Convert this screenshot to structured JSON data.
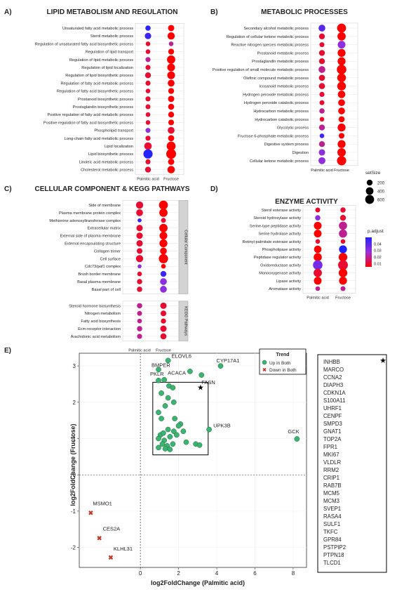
{
  "colors": {
    "scale_high": "#2222ff",
    "scale_mid": "#9b30d9",
    "scale_low": "#ff0000",
    "up_both": "#3cb371",
    "down_both": "#c0392b",
    "panel_bg": "#ffffff",
    "strip_bg": "#d3d3d3"
  },
  "shared": {
    "x_categories": [
      "Palmitic acid",
      "Fructose"
    ]
  },
  "size_legend": {
    "title": "setSize",
    "labels": [
      "200",
      "400",
      "600"
    ],
    "values": [
      200,
      400,
      600
    ]
  },
  "color_legend": {
    "title": "p.adjust",
    "labels": [
      "0.04",
      "0.03",
      "0.02",
      "0.01"
    ],
    "values": [
      0.04,
      0.03,
      0.02,
      0.01
    ]
  },
  "chart_data": [
    {
      "type": "scatter",
      "panel": "A)",
      "title": "LIPID METABOLISM AND REGULATION",
      "encoding": "dotplot",
      "categories": [
        "Palmitic acid",
        "Fructose"
      ],
      "terms": [
        "Unsaturated fatty acid metabolic process",
        "Sterol metabolic process",
        "Regulation of unsaturated fatty acid biosynthetic process",
        "Regulation of lipid transport",
        "Regulation of lipid metabolic process",
        "Regulation of lipid localization",
        "Regulation of lipid biosynthetic process",
        "Regulation of fatty acid metabolic process",
        "Regulation of fatty acid biosynthetic process",
        "Prostanoid biosynthetic process",
        "Prostaglandin biosynthetic process",
        "Positive regulation of fatty acid metabolic process",
        "Positive regulation of fatty acid biosynthetic process",
        "Phospholipid transport",
        "Long-chain fatty acid metabolic process",
        "Lipid localization",
        "Lipid biosynthetic process",
        "Linoleic acid metabolic process",
        "Cholesterol metabolic process"
      ],
      "palmitic_size": [
        150,
        260,
        100,
        100,
        130,
        130,
        200,
        130,
        100,
        130,
        120,
        100,
        100,
        120,
        130,
        380,
        650,
        130,
        200
      ],
      "palmitic_padj": [
        0.048,
        0.045,
        0.01,
        0.01,
        0.02,
        0.01,
        0.01,
        0.01,
        0.01,
        0.01,
        0.01,
        0.01,
        0.01,
        0.03,
        0.01,
        0.01,
        0.049,
        0.01,
        0.01
      ],
      "fructose_size": [
        240,
        360,
        100,
        200,
        500,
        420,
        420,
        300,
        200,
        240,
        220,
        200,
        180,
        300,
        230,
        600,
        760,
        240,
        380
      ],
      "fructose_padj": [
        0.005,
        0.005,
        0.02,
        0.005,
        0.005,
        0.005,
        0.005,
        0.005,
        0.005,
        0.005,
        0.005,
        0.005,
        0.005,
        0.01,
        0.005,
        0.005,
        0.005,
        0.005,
        0.005
      ]
    },
    {
      "type": "scatter",
      "panel": "B)",
      "title": "METABOLIC PROCESSES",
      "encoding": "dotplot",
      "categories": [
        "Palmitic acid",
        "Fructose"
      ],
      "terms": [
        "Secondary alcohol metabolic process",
        "Regulation of cellular ketone metabolic process",
        "Reactive nitrogen species metabolic process",
        "Prostanoid metabolic process",
        "Prostaglandin metabolic process",
        "Positive regulation of small molecule metabolic process",
        "Olefinic compound metabolic process",
        "Icosanoid metabolic process",
        "Hydrogen peroxide metabolic process",
        "Hydrogen peroxide catabolic process",
        "Hydrocarbon metabolic process",
        "Hydrocarbon catabolic process",
        "Glycolytic process",
        "Fructose 6-phosphate metabolic process",
        "Digestive system process",
        "Digestion",
        "Cellular ketone metabolic process"
      ],
      "palmitic_size": [
        300,
        200,
        120,
        200,
        200,
        300,
        220,
        220,
        130,
        120,
        150,
        100,
        200,
        100,
        200,
        250,
        320
      ],
      "palmitic_padj": [
        0.04,
        0.01,
        0.01,
        0.01,
        0.01,
        0.02,
        0.01,
        0.01,
        0.01,
        0.01,
        0.02,
        0.01,
        0.02,
        0.045,
        0.02,
        0.03,
        0.03
      ],
      "fructose_size": [
        600,
        500,
        420,
        450,
        450,
        700,
        560,
        560,
        380,
        300,
        300,
        220,
        450,
        180,
        450,
        520,
        650
      ],
      "fructose_padj": [
        0.005,
        0.005,
        0.03,
        0.005,
        0.005,
        0.005,
        0.005,
        0.005,
        0.005,
        0.005,
        0.005,
        0.005,
        0.005,
        0.005,
        0.005,
        0.005,
        0.005
      ]
    },
    {
      "type": "scatter",
      "panel": "C)",
      "title": "CELLULAR COMPONENT & KEGG PATHWAYS",
      "encoding": "dotplot",
      "categories": [
        "Palmitic acid",
        "Fructose"
      ],
      "groups": [
        {
          "label": "Cellular Component",
          "terms": [
            "Side of membrane",
            "Plasma membrane protein complex",
            "Methionine adenosyltransferase complex",
            "Extracellular matrix",
            "External side of plasma membrane",
            "External encapsulating structure",
            "Collagen trimer",
            "Cell surface",
            "Cdc73/paf1 complex",
            "Brush border membrane",
            "Basal plasma membrane",
            "Basal part of cell"
          ],
          "palmitic_size": [
            350,
            300,
            60,
            250,
            250,
            250,
            180,
            350,
            60,
            100,
            150,
            150
          ],
          "palmitic_padj": [
            0.01,
            0.01,
            0.045,
            0.01,
            0.01,
            0.01,
            0.01,
            0.01,
            0.03,
            0.01,
            0.01,
            0.01
          ],
          "fructose_size": [
            600,
            500,
            120,
            500,
            420,
            450,
            300,
            650,
            100,
            200,
            300,
            300
          ],
          "fructose_padj": [
            0.005,
            0.005,
            0.01,
            0.005,
            0.005,
            0.005,
            0.005,
            0.005,
            0.005,
            0.045,
            0.03,
            0.03
          ]
        },
        {
          "label": "KEGG Pathways",
          "terms": [
            "Steroid hormone biosynthesis",
            "Nitrogen metabolism",
            "Fatty acid biosynthesis",
            "Ecm-receptor interaction",
            "Arachidonic acid metabolism"
          ],
          "palmitic_size": [
            150,
            120,
            100,
            150,
            130
          ],
          "palmitic_padj": [
            0.02,
            0.02,
            0.02,
            0.02,
            0.02
          ],
          "fructose_size": [
            250,
            180,
            140,
            250,
            220
          ],
          "fructose_padj": [
            0.01,
            0.01,
            0.01,
            0.01,
            0.01
          ]
        }
      ]
    },
    {
      "type": "scatter",
      "panel": "D)",
      "title": "ENZYME ACTIVITY",
      "encoding": "dotplot",
      "categories": [
        "Palmitic acid",
        "Fructose"
      ],
      "terms": [
        "Sterol esterase activity",
        "Steroid hydroxylase activity",
        "Serine-type peptidase activity",
        "Serine hydrolase activity",
        "Retinyl-palmitate esterase activity",
        "Phospholipase activity",
        "Peptidase regulator activity",
        "Oxidoreductase activity",
        "Monooxygenase activity",
        "Lipase activity",
        "Aromatase activity"
      ],
      "palmitic_size": [
        120,
        150,
        420,
        420,
        100,
        380,
        480,
        700,
        500,
        420,
        100
      ],
      "palmitic_padj": [
        0.01,
        0.03,
        0.005,
        0.005,
        0.01,
        0.005,
        0.005,
        0.035,
        0.01,
        0.005,
        0.02
      ],
      "fructose_size": [
        150,
        200,
        480,
        480,
        100,
        450,
        550,
        750,
        550,
        450,
        120
      ],
      "fructose_padj": [
        0.01,
        0.01,
        0.02,
        0.02,
        0.01,
        0.05,
        0.005,
        0.01,
        0.005,
        0.005,
        0.02
      ]
    },
    {
      "type": "scatter",
      "panel": "E)",
      "xlabel": "log2FoldChange (Palmitic acid)",
      "ylabel": "log2FoldChange (Fructose)",
      "xlim": [
        -3.2,
        8.7
      ],
      "ylim": [
        -2.55,
        3.35
      ],
      "xticks": [
        0,
        2,
        4,
        6,
        8
      ],
      "yticks": [
        -2,
        -1,
        0,
        1,
        2,
        3
      ],
      "legend": {
        "title": "Trend",
        "position": "top-right",
        "items": [
          "Up in Both",
          "Down in Both"
        ]
      },
      "series": [
        {
          "name": "Up in Both",
          "points": [
            [
              1.45,
              3.15
            ],
            [
              0.95,
              2.9
            ],
            [
              2.6,
              2.85
            ],
            [
              3.2,
              2.75
            ],
            [
              4.2,
              3.0
            ],
            [
              0.95,
              2.6
            ],
            [
              1.25,
              2.62
            ],
            [
              1.5,
              2.45
            ],
            [
              1.7,
              2.4
            ],
            [
              1.1,
              2.25
            ],
            [
              1.45,
              2.12
            ],
            [
              1.75,
              2.0
            ],
            [
              0.95,
              1.72
            ],
            [
              1.3,
              1.9
            ],
            [
              1.1,
              1.55
            ],
            [
              1.8,
              1.55
            ],
            [
              2.1,
              1.4
            ],
            [
              1.05,
              1.1
            ],
            [
              1.2,
              1.15
            ],
            [
              1.45,
              1.25
            ],
            [
              1.75,
              1.2
            ],
            [
              2.0,
              1.35
            ],
            [
              0.95,
              1.0
            ],
            [
              1.25,
              0.95
            ],
            [
              1.55,
              1.05
            ],
            [
              1.9,
              1.1
            ],
            [
              2.25,
              1.2
            ],
            [
              1.15,
              0.85
            ],
            [
              1.4,
              0.8
            ],
            [
              1.7,
              0.85
            ],
            [
              2.4,
              0.9
            ],
            [
              2.9,
              0.85
            ],
            [
              0.95,
              0.75
            ],
            [
              1.3,
              0.72
            ],
            [
              1.55,
              0.7
            ],
            [
              3.1,
              0.82
            ],
            [
              3.6,
              1.25
            ],
            [
              8.2,
              0.99
            ]
          ]
        },
        {
          "name": "Down in Both",
          "points": [
            [
              -2.6,
              -1.05
            ],
            [
              -2.15,
              -1.75
            ],
            [
              -1.55,
              -2.28
            ]
          ]
        }
      ],
      "point_labels": [
        {
          "text": "ELOVL6",
          "x": 1.45,
          "y": 3.15
        },
        {
          "text": "BMPER",
          "x": 0.95,
          "y": 2.9
        },
        {
          "text": "CYP17A1",
          "x": 4.2,
          "y": 3.0
        },
        {
          "text": "FASN",
          "x": 3.2,
          "y": 2.75
        },
        {
          "text": "PKLR",
          "x": 0.95,
          "y": 2.6
        },
        {
          "text": "ACACA",
          "x": 1.25,
          "y": 2.62
        },
        {
          "text": "UPK3B",
          "x": 3.6,
          "y": 1.25
        },
        {
          "text": "GCK",
          "x": 8.2,
          "y": 0.99
        },
        {
          "text": "MSMO1",
          "x": -2.6,
          "y": -1.05
        },
        {
          "text": "CES2A",
          "x": -2.15,
          "y": -1.75
        },
        {
          "text": "KLHL31",
          "x": -1.55,
          "y": -2.28
        }
      ],
      "inset_genes": [
        "INHBB",
        "MARCO",
        "CCNA2",
        "DIAPH3",
        "CDKN1A",
        "S100A11",
        "UHRF1",
        "CENPF",
        "SMPD3",
        "GNAT1",
        "TOP2A",
        "FPR1",
        "MKI67",
        "VLDLR",
        "RRM2",
        "CRIP1",
        "RAB7B",
        "MCM5",
        "MCM3",
        "SVEP1",
        "RASA4",
        "SULF1",
        "TKFC",
        "GPR84",
        "PSTPIP2",
        "PTPN18",
        "TLCD1"
      ]
    }
  ]
}
